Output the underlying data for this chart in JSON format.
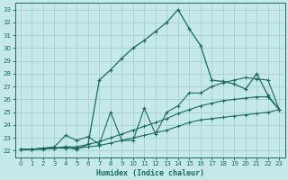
{
  "xlabel": "Humidex (Indice chaleur)",
  "xlim": [
    -0.5,
    23.5
  ],
  "ylim": [
    21.5,
    33.5
  ],
  "xticks": [
    0,
    1,
    2,
    3,
    4,
    5,
    6,
    7,
    8,
    9,
    10,
    11,
    12,
    13,
    14,
    15,
    16,
    17,
    18,
    19,
    20,
    21,
    22,
    23
  ],
  "yticks": [
    22,
    23,
    24,
    25,
    26,
    27,
    28,
    29,
    30,
    31,
    32,
    33
  ],
  "bg_color": "#c5e8e8",
  "grid_color": "#a8d0d0",
  "line_color": "#1a6b5a",
  "line1_y": [
    22.1,
    22.1,
    22.2,
    22.2,
    22.3,
    22.1,
    22.5,
    27.5,
    28.3,
    29.2,
    30.0,
    30.6,
    31.3,
    32.0,
    33.0,
    31.5,
    30.2,
    27.5,
    27.4,
    27.2,
    26.8,
    28.0,
    26.3,
    25.2
  ],
  "line2_y": [
    22.1,
    22.1,
    22.2,
    22.3,
    23.2,
    22.8,
    23.1,
    22.5,
    25.0,
    22.8,
    22.8,
    25.3,
    23.3,
    25.0,
    25.5,
    26.5,
    26.5,
    27.0,
    27.3,
    27.5,
    27.7,
    27.6,
    27.5,
    25.2
  ],
  "line3_y": [
    22.1,
    22.1,
    22.2,
    22.2,
    22.3,
    22.3,
    22.5,
    22.7,
    23.0,
    23.3,
    23.6,
    23.9,
    24.2,
    24.5,
    24.9,
    25.2,
    25.5,
    25.7,
    25.9,
    26.0,
    26.1,
    26.2,
    26.2,
    25.2
  ],
  "line4_y": [
    22.1,
    22.1,
    22.1,
    22.2,
    22.2,
    22.2,
    22.3,
    22.4,
    22.6,
    22.8,
    23.0,
    23.2,
    23.4,
    23.6,
    23.9,
    24.2,
    24.4,
    24.5,
    24.6,
    24.7,
    24.8,
    24.9,
    25.0,
    25.2
  ]
}
